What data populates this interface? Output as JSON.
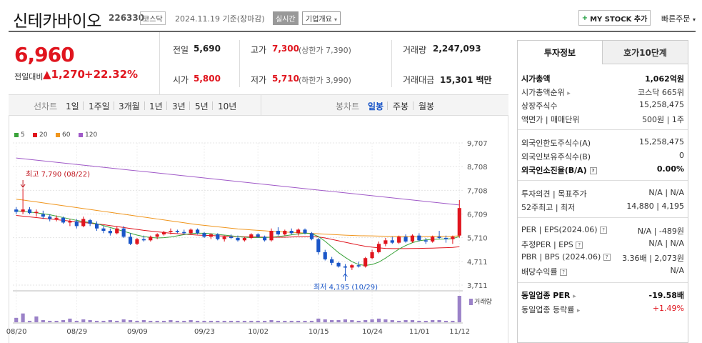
{
  "header": {
    "name": "신테카바이오",
    "code": "226330",
    "market": "코스닥",
    "date": "2024.11.19 기준(장마감)",
    "realtime": "실시간",
    "company_info": "기업개요",
    "mystock": "MY STOCK 추가",
    "quick_order": "빠른주문"
  },
  "price": {
    "current": "6,960",
    "vs_label": "전일대비",
    "change": "1,270",
    "rate": "+22.32%"
  },
  "quote": {
    "prev_close_label": "전일",
    "prev_close": "5,690",
    "high_label": "고가",
    "high": "7,300",
    "upper_limit": "(상한가 7,390)",
    "volume_label": "거래량",
    "volume": "2,247,093",
    "open_label": "시가",
    "open": "5,800",
    "low_label": "저가",
    "low": "5,710",
    "lower_limit": "(하한가 3,990)",
    "amount_label": "거래대금",
    "amount": "15,301",
    "amount_unit": "백만"
  },
  "toolbar": {
    "line_chart": "선차트",
    "periods": [
      "1일",
      "1주일",
      "3개월",
      "1년",
      "3년",
      "5년",
      "10년"
    ],
    "candle_chart": "봉차트",
    "candle_periods": [
      "일봉",
      "주봉",
      "월봉"
    ]
  },
  "chart": {
    "legend": [
      {
        "label": "5",
        "color": "#3aa33a"
      },
      {
        "label": "20",
        "color": "#e0151e"
      },
      {
        "label": "60",
        "color": "#f0961e"
      },
      {
        "label": "120",
        "color": "#a05ac8"
      }
    ],
    "high_note": "최고 7,790 (08/22)",
    "low_note": "최저 4,195 (10/29)",
    "volume_label": "거래량"
  },
  "chart_data": {
    "type": "candlestick",
    "y_ticks": [
      "9,707",
      "8,708",
      "7,708",
      "6,709",
      "5,710",
      "4,711",
      "3,711"
    ],
    "ylim": [
      3711,
      9707
    ],
    "x_ticks": [
      "08/20",
      "08/29",
      "09/09",
      "09/23",
      "10/02",
      "10/15",
      "10/24",
      "11/01",
      "11/12"
    ],
    "candles": [
      [
        6900,
        7000,
        6700,
        6800
      ],
      [
        6800,
        7790,
        6700,
        6900
      ],
      [
        6900,
        7000,
        6700,
        6750
      ],
      [
        6750,
        6900,
        6600,
        6800
      ],
      [
        6700,
        6850,
        6500,
        6600
      ],
      [
        6600,
        6700,
        6400,
        6500
      ],
      [
        6500,
        6650,
        6400,
        6550
      ],
      [
        6550,
        6600,
        6300,
        6350
      ],
      [
        6350,
        6500,
        6200,
        6400
      ],
      [
        6400,
        6500,
        6100,
        6200
      ],
      [
        6200,
        6600,
        6150,
        6500
      ],
      [
        6450,
        6500,
        6200,
        6300
      ],
      [
        6300,
        6400,
        6000,
        6100
      ],
      [
        6100,
        6200,
        5900,
        6000
      ],
      [
        6000,
        6100,
        5800,
        5900
      ],
      [
        5900,
        6200,
        5850,
        6100
      ],
      [
        6100,
        6200,
        5700,
        5750
      ],
      [
        5750,
        5900,
        5400,
        5450
      ],
      [
        5450,
        5700,
        5400,
        5650
      ],
      [
        5650,
        5800,
        5550,
        5600
      ],
      [
        5600,
        5800,
        5550,
        5750
      ],
      [
        5750,
        5900,
        5650,
        5850
      ],
      [
        5850,
        6000,
        5800,
        5950
      ],
      [
        5950,
        6100,
        5850,
        6000
      ],
      [
        6000,
        6050,
        5900,
        5950
      ],
      [
        5950,
        6050,
        5850,
        5900
      ],
      [
        5900,
        6100,
        5850,
        6050
      ],
      [
        6050,
        6100,
        5850,
        5900
      ],
      [
        5900,
        5950,
        5700,
        5750
      ],
      [
        5750,
        5900,
        5650,
        5850
      ],
      [
        5850,
        5900,
        5600,
        5650
      ],
      [
        5650,
        5800,
        5550,
        5750
      ],
      [
        5750,
        5850,
        5650,
        5700
      ],
      [
        5700,
        5800,
        5550,
        5600
      ],
      [
        5600,
        5750,
        5550,
        5700
      ],
      [
        5700,
        5900,
        5650,
        5850
      ],
      [
        5850,
        5900,
        5700,
        5750
      ],
      [
        5750,
        5800,
        5550,
        5600
      ],
      [
        5600,
        6100,
        5550,
        6000
      ],
      [
        6000,
        6150,
        5800,
        5850
      ],
      [
        5850,
        6050,
        5800,
        6000
      ],
      [
        6000,
        6100,
        5850,
        5900
      ],
      [
        5900,
        6100,
        5800,
        6050
      ],
      [
        6050,
        6100,
        5850,
        5900
      ],
      [
        5900,
        5950,
        5600,
        5650
      ],
      [
        5650,
        5700,
        5000,
        5100
      ],
      [
        5100,
        5200,
        4750,
        4800
      ],
      [
        4800,
        4900,
        4550,
        4650
      ],
      [
        4650,
        4700,
        4450,
        4500
      ],
      [
        4500,
        4600,
        4195,
        4450
      ],
      [
        4450,
        4600,
        4350,
        4550
      ],
      [
        4550,
        4700,
        4450,
        4500
      ],
      [
        4500,
        4900,
        4450,
        4850
      ],
      [
        4850,
        5200,
        4800,
        5100
      ],
      [
        5100,
        5550,
        5050,
        5450
      ],
      [
        5450,
        5700,
        5350,
        5600
      ],
      [
        5600,
        5750,
        5450,
        5500
      ],
      [
        5500,
        5800,
        5450,
        5750
      ],
      [
        5750,
        5850,
        5500,
        5550
      ],
      [
        5550,
        5850,
        5500,
        5800
      ],
      [
        5800,
        5900,
        5550,
        5600
      ],
      [
        5600,
        5700,
        5450,
        5550
      ],
      [
        5550,
        5800,
        5500,
        5750
      ],
      [
        5750,
        6000,
        5650,
        5700
      ],
      [
        5700,
        5800,
        5500,
        5650
      ],
      [
        5650,
        5800,
        5450,
        5750
      ],
      [
        5800,
        7300,
        5710,
        6960
      ]
    ],
    "ma5": [
      6850,
      6820,
      6790,
      6760,
      6720,
      6680,
      6620,
      6560,
      6500,
      6440,
      6390,
      6350,
      6300,
      6220,
      6140,
      6060,
      5980,
      5900,
      5820,
      5760,
      5720,
      5700,
      5710,
      5740,
      5790,
      5840,
      5880,
      5900,
      5900,
      5880,
      5850,
      5820,
      5790,
      5760,
      5730,
      5720,
      5720,
      5720,
      5730,
      5760,
      5790,
      5830,
      5870,
      5900,
      5880,
      5760,
      5560,
      5320,
      5080,
      4880,
      4700,
      4580,
      4540,
      4580,
      4680,
      4850,
      5040,
      5230,
      5380,
      5500,
      5580,
      5620,
      5640,
      5650,
      5660,
      5670,
      5760
    ],
    "ma20": [
      6650,
      6620,
      6590,
      6560,
      6530,
      6500,
      6470,
      6440,
      6410,
      6380,
      6350,
      6320,
      6290,
      6260,
      6220,
      6180,
      6140,
      6100,
      6060,
      6020,
      5990,
      5960,
      5930,
      5900,
      5880,
      5860,
      5840,
      5820,
      5810,
      5800,
      5790,
      5780,
      5770,
      5760,
      5750,
      5745,
      5740,
      5735,
      5730,
      5730,
      5730,
      5740,
      5750,
      5760,
      5760,
      5740,
      5700,
      5640,
      5580,
      5520,
      5460,
      5400,
      5350,
      5310,
      5280,
      5260,
      5250,
      5250,
      5250,
      5255,
      5260,
      5265,
      5270,
      5280,
      5290,
      5300,
      5330
    ],
    "ma60": [
      7330,
      7300,
      7260,
      7220,
      7180,
      7140,
      7100,
      7060,
      7020,
      6980,
      6940,
      6900,
      6860,
      6820,
      6780,
      6740,
      6700,
      6660,
      6620,
      6580,
      6540,
      6500,
      6460,
      6420,
      6380,
      6340,
      6300,
      6260,
      6230,
      6200,
      6170,
      6140,
      6110,
      6080,
      6060,
      6040,
      6020,
      6000,
      5980,
      5965,
      5950,
      5935,
      5920,
      5905,
      5890,
      5875,
      5860,
      5845,
      5830,
      5815,
      5805,
      5795,
      5790,
      5785,
      5780,
      5775,
      5770,
      5768,
      5766,
      5765,
      5765,
      5766,
      5768,
      5770,
      5772,
      5775,
      5790
    ],
    "ma120": [
      9070,
      9040,
      9010,
      8980,
      8950,
      8920,
      8890,
      8860,
      8830,
      8800,
      8770,
      8740,
      8710,
      8680,
      8650,
      8620,
      8590,
      8560,
      8530,
      8500,
      8470,
      8440,
      8410,
      8380,
      8350,
      8320,
      8290,
      8260,
      8230,
      8200,
      8170,
      8140,
      8110,
      8080,
      8050,
      8020,
      7990,
      7960,
      7930,
      7900,
      7870,
      7840,
      7810,
      7780,
      7750,
      7720,
      7690,
      7660,
      7630,
      7600,
      7570,
      7540,
      7510,
      7480,
      7450,
      7420,
      7390,
      7360,
      7330,
      7300,
      7270,
      7240,
      7210,
      7180,
      7150,
      7120,
      7090
    ],
    "volume": [
      6,
      12,
      2,
      8,
      3,
      2,
      2,
      3,
      5,
      2,
      4,
      3,
      2,
      2,
      3,
      2,
      4,
      3,
      2,
      3,
      2,
      2,
      2,
      3,
      2,
      2,
      3,
      2,
      2,
      2,
      2,
      2,
      2,
      2,
      2,
      2,
      2,
      2,
      3,
      2,
      2,
      2,
      2,
      2,
      2,
      5,
      4,
      3,
      3,
      4,
      3,
      2,
      3,
      4,
      5,
      4,
      3,
      2,
      3,
      3,
      2,
      2,
      3,
      3,
      2,
      2,
      36
    ]
  },
  "invest": {
    "tab_active": "투자정보",
    "tab_other": "호가10단계",
    "rows": [
      {
        "k": "시가총액",
        "v": "1,062억원"
      },
      {
        "k": "시가총액순위",
        "v": "코스닥 665위"
      },
      {
        "k": "상장주식수",
        "v": "15,258,475"
      },
      {
        "k": "액면가 | 매매단위",
        "v": "500원 | 1주"
      },
      {
        "k": "외국인한도주식수(A)",
        "v": "15,258,475"
      },
      {
        "k": "외국인보유주식수(B)",
        "v": "0"
      },
      {
        "k": "외국인소진율(B/A)",
        "v": "0.00%"
      },
      {
        "k": "투자의견 | 목표주가",
        "v": "N/A | N/A"
      },
      {
        "k": "52주최고 | 최저",
        "v": "14,880 | 4,195"
      },
      {
        "k": "PER | EPS(2024.06)",
        "v": "N/A | -489원"
      },
      {
        "k": "추정PER | EPS",
        "v": "N/A | N/A"
      },
      {
        "k": "PBR | BPS (2024.06)",
        "v": "3.36배 | 2,073원"
      },
      {
        "k": "배당수익률",
        "v": "N/A"
      },
      {
        "k": "동일업종 PER",
        "v": "-19.58배"
      },
      {
        "k": "동일업종 등락률",
        "v": "+1.49%"
      }
    ]
  }
}
